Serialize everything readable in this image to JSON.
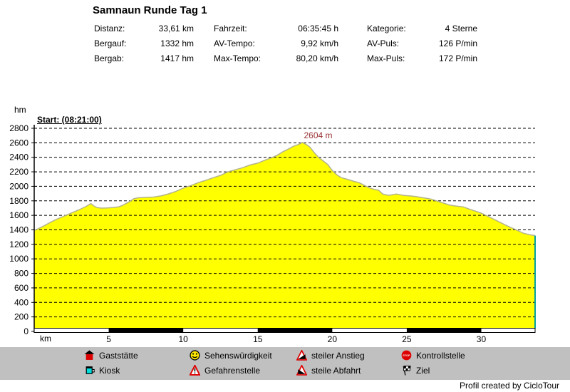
{
  "header": {
    "title": "Samnaun Runde Tag 1",
    "stats": {
      "col1": [
        {
          "label": "Distanz:",
          "value": "33,61 km"
        },
        {
          "label": "Bergauf:",
          "value": "1332 hm"
        },
        {
          "label": "Bergab:",
          "value": "1417 hm"
        }
      ],
      "col2": [
        {
          "label": "Fahrzeit:",
          "value": "06:35:45 h"
        },
        {
          "label": "AV-Tempo:",
          "value": "9,92 km/h"
        },
        {
          "label": "Max-Tempo:",
          "value": "80,20 km/h"
        }
      ],
      "col3": [
        {
          "label": "Kategorie:",
          "value": "4 Sterne"
        },
        {
          "label": "AV-Puls:",
          "value": "126 P/min"
        },
        {
          "label": "Max-Puls:",
          "value": "172 P/min"
        }
      ]
    }
  },
  "chart": {
    "y_axis_label": "hm",
    "x_axis_label": "km",
    "start_annotation": "Start: (08:21:00)",
    "peak_annotation": "2604 m",
    "colors": {
      "profile_fill": "#ffff00",
      "profile_outline": "#b4b48c",
      "grid": "#000000",
      "peak_text": "#993333",
      "end_marker": "#00a0a0"
    }
  },
  "chart_data": {
    "type": "area",
    "title": "Samnaun Runde Tag 1",
    "xlabel": "km",
    "ylabel": "hm",
    "xlim": [
      0,
      33.61
    ],
    "ylim": [
      0,
      2800
    ],
    "y_ticks": [
      0,
      200,
      400,
      600,
      800,
      1000,
      1200,
      1400,
      1600,
      1800,
      2000,
      2200,
      2400,
      2600,
      2800
    ],
    "x_ticks": [
      5,
      10,
      15,
      20,
      25,
      30
    ],
    "grid": "dashed-horizontal",
    "peak": {
      "km": 18.0,
      "m": 2604
    },
    "points": [
      [
        0,
        1390
      ],
      [
        0.3,
        1420
      ],
      [
        0.7,
        1460
      ],
      [
        1.1,
        1505
      ],
      [
        1.5,
        1545
      ],
      [
        1.9,
        1580
      ],
      [
        2.3,
        1615
      ],
      [
        2.7,
        1650
      ],
      [
        3.1,
        1685
      ],
      [
        3.5,
        1725
      ],
      [
        3.8,
        1762
      ],
      [
        4.0,
        1730
      ],
      [
        4.2,
        1708
      ],
      [
        4.5,
        1700
      ],
      [
        4.9,
        1703
      ],
      [
        5.3,
        1708
      ],
      [
        5.7,
        1718
      ],
      [
        6.0,
        1745
      ],
      [
        6.4,
        1790
      ],
      [
        6.7,
        1830
      ],
      [
        7.0,
        1843
      ],
      [
        7.5,
        1848
      ],
      [
        8.0,
        1852
      ],
      [
        8.5,
        1868
      ],
      [
        9.0,
        1895
      ],
      [
        9.5,
        1930
      ],
      [
        10.0,
        1975
      ],
      [
        10.5,
        2010
      ],
      [
        11.0,
        2050
      ],
      [
        11.5,
        2082
      ],
      [
        12.0,
        2118
      ],
      [
        12.5,
        2152
      ],
      [
        13.0,
        2200
      ],
      [
        13.5,
        2228
      ],
      [
        14.0,
        2258
      ],
      [
        14.5,
        2295
      ],
      [
        15.0,
        2320
      ],
      [
        15.5,
        2362
      ],
      [
        16.0,
        2400
      ],
      [
        16.3,
        2428
      ],
      [
        16.7,
        2478
      ],
      [
        17.0,
        2508
      ],
      [
        17.4,
        2552
      ],
      [
        17.7,
        2575
      ],
      [
        18.0,
        2604
      ],
      [
        18.3,
        2570
      ],
      [
        18.5,
        2540
      ],
      [
        18.8,
        2462
      ],
      [
        19.1,
        2396
      ],
      [
        19.4,
        2348
      ],
      [
        19.7,
        2300
      ],
      [
        20.0,
        2218
      ],
      [
        20.3,
        2160
      ],
      [
        20.6,
        2120
      ],
      [
        21.0,
        2098
      ],
      [
        21.4,
        2072
      ],
      [
        21.8,
        2050
      ],
      [
        22.2,
        2008
      ],
      [
        22.5,
        1980
      ],
      [
        22.8,
        1958
      ],
      [
        23.1,
        1948
      ],
      [
        23.4,
        1892
      ],
      [
        23.8,
        1876
      ],
      [
        24.3,
        1893
      ],
      [
        24.8,
        1876
      ],
      [
        25.2,
        1868
      ],
      [
        25.6,
        1860
      ],
      [
        26.1,
        1842
      ],
      [
        26.6,
        1825
      ],
      [
        27.0,
        1800
      ],
      [
        27.4,
        1772
      ],
      [
        27.9,
        1740
      ],
      [
        28.4,
        1725
      ],
      [
        28.8,
        1716
      ],
      [
        29.2,
        1685
      ],
      [
        29.6,
        1658
      ],
      [
        30.0,
        1630
      ],
      [
        30.4,
        1592
      ],
      [
        30.8,
        1550
      ],
      [
        31.2,
        1510
      ],
      [
        31.6,
        1468
      ],
      [
        32.0,
        1430
      ],
      [
        32.4,
        1395
      ],
      [
        32.8,
        1355
      ],
      [
        33.2,
        1335
      ],
      [
        33.61,
        1320
      ]
    ]
  },
  "legend": {
    "items": [
      {
        "icon": "house-icon",
        "label": "Gaststätte"
      },
      {
        "icon": "smiley-icon",
        "label": "Sehenswürdigkeit"
      },
      {
        "icon": "ascent-triangle-icon",
        "label": "steiler Anstieg"
      },
      {
        "icon": "stop-sign-icon",
        "label": "Kontrollstelle"
      },
      {
        "icon": "mug-icon",
        "label": "Kiosk"
      },
      {
        "icon": "warning-triangle-icon",
        "label": "Gefahrenstelle"
      },
      {
        "icon": "descent-triangle-icon",
        "label": "steile Abfahrt"
      },
      {
        "icon": "finish-flag-icon",
        "label": "Ziel"
      }
    ]
  },
  "footer": {
    "credit": "Profil created by CicloTour"
  }
}
